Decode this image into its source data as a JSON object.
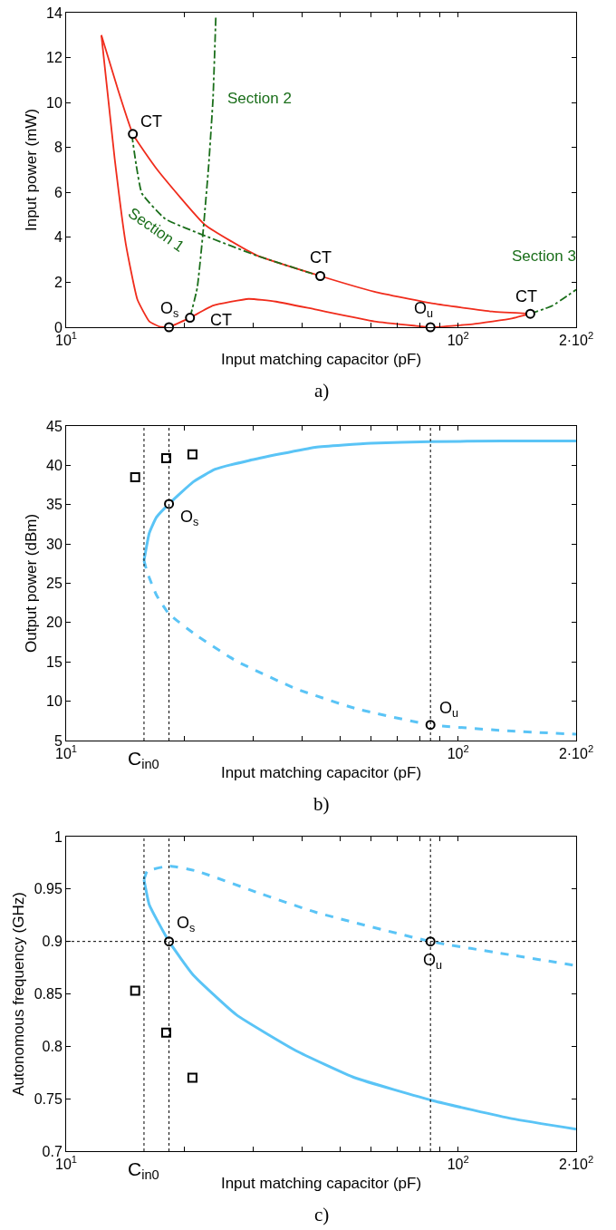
{
  "chart_data": [
    {
      "type": "line",
      "xlabel": "Input matching capacitor (pF)",
      "ylabel": "Input power (mW)",
      "log": "x",
      "grid": false,
      "xlim": [
        10,
        200
      ],
      "xticks": [
        {
          "value": 10,
          "label": "10$^{1}$"
        },
        {
          "value": 20,
          "label": null
        },
        {
          "value": 30,
          "label": null
        },
        {
          "value": 40,
          "label": null
        },
        {
          "value": 50,
          "label": null
        },
        {
          "value": 60,
          "label": null
        },
        {
          "value": 70,
          "label": null
        },
        {
          "value": 80,
          "label": null
        },
        {
          "value": 90,
          "label": null
        },
        {
          "value": 100,
          "label": "10$^{2}$"
        },
        {
          "value": 200,
          "label": "2·10$^{2}$"
        }
      ],
      "ylim": [
        0,
        14
      ],
      "yticks": [
        0,
        2,
        4,
        6,
        8,
        10,
        12,
        14
      ],
      "series": [
        {
          "color": "#f02c1c",
          "line_style": "solid",
          "x": [
            12.3,
            13.6,
            14.8,
            17.1,
            22.6,
            30.6,
            44.5,
            61.2,
            86.6,
            122,
            152.8
          ],
          "values": [
            13,
            10.5,
            8.6,
            7.0,
            4.56,
            3.2,
            2.28,
            1.58,
            1.05,
            0.7,
            0.6
          ]
        },
        {
          "color": "#f02c1c",
          "line_style": "solid",
          "x": [
            12.3,
            13.3,
            14.2,
            15.2,
            16.3,
            17.3,
            18.3
          ],
          "values": [
            13,
            7.5,
            3.7,
            1.23,
            0.26,
            0.03,
            0
          ]
        },
        {
          "color": "#f02c1c",
          "line_style": "solid",
          "x": [
            18.3,
            20.7,
            23.7,
            29.2,
            34.3,
            43.2,
            61.2,
            77.1,
            85,
            109,
            137,
            152.8
          ],
          "values": [
            0,
            0.42,
            0.96,
            1.26,
            1.14,
            0.79,
            0.26,
            0.07,
            0,
            0.14,
            0.39,
            0.6
          ]
        },
        {
          "name": "Section 1",
          "color": "#1a6e1a",
          "line_style": "dashdot",
          "x": [
            14.7,
            15.1,
            15.6,
            17.9,
            22.6,
            30.6,
            42.2,
            44.5
          ],
          "values": [
            8.6,
            7.2,
            5.96,
            4.82,
            4.07,
            3.19,
            2.4,
            2.28
          ]
        },
        {
          "name": "Section 2",
          "color": "#1a6e1a",
          "line_style": "dashdot",
          "x": [
            20.7,
            21.6,
            22.3,
            23.1,
            23.7,
            24.1
          ],
          "values": [
            0.42,
            1.75,
            4.04,
            7.2,
            10.2,
            13.9
          ]
        },
        {
          "name": "Section 3",
          "color": "#1a6e1a",
          "line_style": "dashdot",
          "x": [
            152.8,
            174,
            200
          ],
          "values": [
            0.6,
            0.96,
            1.67
          ]
        },
        {
          "type": "scatter",
          "marker": "circle",
          "color": "#000000",
          "x": [
            18.3,
            85,
            14.8,
            20.7,
            44.5,
            152.8
          ],
          "values": [
            0,
            0,
            8.6,
            0.42,
            2.28,
            0.6
          ]
        }
      ],
      "annotations": [
        {
          "text": "O$_{s}$",
          "x": 18.3,
          "y": 0
        },
        {
          "text": "O$_{u}$",
          "x": 85,
          "y": 0
        },
        {
          "text": "CT",
          "x": 14.8,
          "y": 8.6
        },
        {
          "text": "CT",
          "x": 20.7,
          "y": 0.42
        },
        {
          "text": "CT",
          "x": 44.5,
          "y": 2.28
        },
        {
          "text": "CT",
          "x": 152.8,
          "y": 0.6
        },
        "a)"
      ]
    },
    {
      "type": "line",
      "xlabel": "Input matching capacitor (pF)",
      "ylabel": "Output power (dBm)",
      "log": "x",
      "grid": false,
      "xlim": [
        10,
        200
      ],
      "xticks": [
        {
          "value": 10,
          "label": "10$^{1}$"
        },
        {
          "value": 20,
          "label": null
        },
        {
          "value": 30,
          "label": null
        },
        {
          "value": 40,
          "label": null
        },
        {
          "value": 50,
          "label": null
        },
        {
          "value": 60,
          "label": null
        },
        {
          "value": 70,
          "label": null
        },
        {
          "value": 80,
          "label": null
        },
        {
          "value": 90,
          "label": null
        },
        {
          "value": 100,
          "label": "10$^{2}$"
        },
        {
          "value": 200,
          "label": "2·10$^{2}$"
        }
      ],
      "ylim": [
        5,
        45
      ],
      "yticks": [
        5,
        10,
        15,
        20,
        25,
        30,
        35,
        40,
        45
      ],
      "series": [
        {
          "color": "#5ac4f6",
          "line_style": "solid",
          "x": [
            15.8,
            16.3,
            17.0,
            18.3,
            21.1,
            24.0,
            29.2,
            43.2,
            60,
            85,
            130,
            200
          ],
          "values": [
            27.9,
            31.4,
            33.4,
            35.1,
            37.9,
            39.5,
            40.6,
            42.3,
            42.8,
            43.0,
            43.1,
            43.1
          ]
        },
        {
          "color": "#5ac4f6",
          "line_style": "dashed",
          "x": [
            15.8,
            16.1,
            17.0,
            18.3,
            21.6,
            27.2,
            38.5,
            54.5,
            85,
            137,
            200
          ],
          "values": [
            27.9,
            26.4,
            23.5,
            21.1,
            18.3,
            15.1,
            11.6,
            9.1,
            7.0,
            6.2,
            5.8
          ]
        },
        {
          "type": "scatter",
          "marker": "square",
          "color": "#000000",
          "x": [
            15.0,
            18.0,
            21.0
          ],
          "values": [
            38.5,
            40.9,
            41.4
          ]
        },
        {
          "type": "scatter",
          "marker": "circle",
          "color": "#000000",
          "x": [
            18.3,
            85
          ],
          "values": [
            35.1,
            7.0
          ]
        }
      ],
      "ref_lines": [
        {
          "axis": "x",
          "value": 15.8,
          "label": "C$_{in0}$",
          "color": "#000000",
          "line_style": "dotted"
        },
        {
          "axis": "x",
          "value": 18.3,
          "label": null,
          "color": "#000000",
          "line_style": "dotted"
        },
        {
          "axis": "x",
          "value": 85,
          "label": null,
          "color": "#000000",
          "line_style": "dotted"
        }
      ],
      "annotations": [
        {
          "text": "O$_{s}$",
          "x": 18.3,
          "y": 35.1
        },
        {
          "text": "O$_{u}$",
          "x": 85,
          "y": 7.0
        },
        "b)"
      ]
    },
    {
      "type": "line",
      "xlabel": "Input matching capacitor (pF)",
      "ylabel": "Autonomous frequency (GHz)",
      "log": "x",
      "grid": false,
      "xlim": [
        10,
        200
      ],
      "xticks": [
        {
          "value": 10,
          "label": "10$^{1}$"
        },
        {
          "value": 20,
          "label": null
        },
        {
          "value": 30,
          "label": null
        },
        {
          "value": 40,
          "label": null
        },
        {
          "value": 50,
          "label": null
        },
        {
          "value": 60,
          "label": null
        },
        {
          "value": 70,
          "label": null
        },
        {
          "value": 80,
          "label": null
        },
        {
          "value": 90,
          "label": null
        },
        {
          "value": 100,
          "label": "10$^{2}$"
        },
        {
          "value": 200,
          "label": "2·10$^{2}$"
        }
      ],
      "ylim": [
        0.7,
        1
      ],
      "yticks": [
        0.7,
        0.75,
        0.8,
        0.85,
        0.9,
        0.95,
        1
      ],
      "series": [
        {
          "color": "#5ac4f6",
          "line_style": "solid",
          "x": [
            15.8,
            16.3,
            18.3,
            21.1,
            27.2,
            38.5,
            54.5,
            86.6,
            137,
            200
          ],
          "values": [
            0.959,
            0.935,
            0.9,
            0.868,
            0.83,
            0.796,
            0.77,
            0.748,
            0.731,
            0.721
          ]
        },
        {
          "color": "#5ac4f6",
          "line_style": "dashed",
          "x": [
            15.8,
            16.1,
            18.3,
            21.6,
            30.6,
            43.2,
            85,
            137,
            200
          ],
          "values": [
            0.959,
            0.967,
            0.972,
            0.967,
            0.947,
            0.928,
            0.9,
            0.887,
            0.877
          ]
        },
        {
          "type": "scatter",
          "marker": "square",
          "color": "#000000",
          "x": [
            15.0,
            18.0,
            21.0
          ],
          "values": [
            0.853,
            0.813,
            0.77
          ]
        },
        {
          "type": "scatter",
          "marker": "circle",
          "color": "#000000",
          "x": [
            18.3,
            85
          ],
          "values": [
            0.9,
            0.9
          ]
        }
      ],
      "ref_lines": [
        {
          "axis": "x",
          "value": 15.8,
          "label": "C$_{in0}$",
          "color": "#000000",
          "line_style": "dotted"
        },
        {
          "axis": "x",
          "value": 18.3,
          "label": null,
          "color": "#000000",
          "line_style": "dotted"
        },
        {
          "axis": "x",
          "value": 85,
          "label": null,
          "color": "#000000",
          "line_style": "dotted"
        },
        {
          "axis": "y",
          "value": 0.9,
          "label": null,
          "color": "#000000",
          "line_style": "dotted"
        }
      ],
      "annotations": [
        {
          "text": "O$_{s}$",
          "x": 18.3,
          "y": 0.9
        },
        {
          "text": "O$_{u}$",
          "x": 85,
          "y": 0.9
        },
        "c)"
      ]
    }
  ]
}
